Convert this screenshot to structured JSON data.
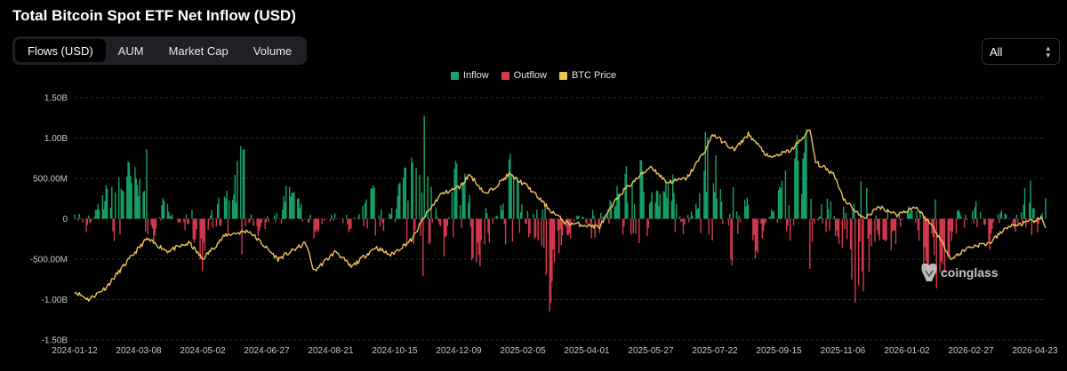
{
  "title": "Total Bitcoin Spot ETF Net Inflow (USD)",
  "tabs": [
    {
      "label": "Flows (USD)",
      "active": true
    },
    {
      "label": "AUM",
      "active": false
    },
    {
      "label": "Market Cap",
      "active": false
    },
    {
      "label": "Volume",
      "active": false
    }
  ],
  "range_select": {
    "value": "All"
  },
  "watermark": {
    "text": "coinglass"
  },
  "colors": {
    "inflow": "#16a36a",
    "outflow": "#d63a4f",
    "price": "#f0c35a",
    "background": "#000000"
  },
  "chart_data": {
    "type": "bar",
    "title": "Total Bitcoin Spot ETF Net Inflow (USD)",
    "legend": [
      "Inflow",
      "Outflow",
      "BTC Price"
    ],
    "legend_position": "top-center",
    "grid": true,
    "ylim": [
      -1500000000,
      1500000000
    ],
    "y_ticks": [
      {
        "value": 1500000000,
        "label": "1.50B"
      },
      {
        "value": 1000000000,
        "label": "1.00B"
      },
      {
        "value": 500000000,
        "label": "500.00M"
      },
      {
        "value": 0,
        "label": "0"
      },
      {
        "value": -500000000,
        "label": "-500.00M"
      },
      {
        "value": -1000000000,
        "label": "-1.00B"
      },
      {
        "value": -1500000000,
        "label": "-1.50B"
      }
    ],
    "x_ticks": [
      "2024-01-12",
      "2024-03-08",
      "2024-05-02",
      "2024-06-27",
      "2024-08-21",
      "2024-10-15",
      "2024-12-09",
      "2025-02-05",
      "2025-04-01",
      "2025-05-27",
      "2025-07-22",
      "2025-09-15",
      "2025-11-06",
      "2026-01-02",
      "2026-02-27",
      "2026-04-23"
    ],
    "x_range": [
      "2024-01-12",
      "2026-04-27"
    ],
    "flow_anchors": [
      [
        "2024-01-12",
        200000000
      ],
      [
        "2024-01-22",
        -150000000
      ],
      [
        "2024-02-01",
        150000000
      ],
      [
        "2024-02-14",
        500000000
      ],
      [
        "2024-02-28",
        600000000
      ],
      [
        "2024-03-08",
        450000000
      ],
      [
        "2024-03-12",
        1050000000
      ],
      [
        "2024-03-19",
        -300000000
      ],
      [
        "2024-03-28",
        250000000
      ],
      [
        "2024-04-12",
        -100000000
      ],
      [
        "2024-04-26",
        -250000000
      ],
      [
        "2024-05-01",
        -550000000
      ],
      [
        "2024-05-10",
        200000000
      ],
      [
        "2024-05-21",
        300000000
      ],
      [
        "2024-06-06",
        850000000
      ],
      [
        "2024-06-14",
        -200000000
      ],
      [
        "2024-06-26",
        -100000000
      ],
      [
        "2024-07-08",
        200000000
      ],
      [
        "2024-07-16",
        450000000
      ],
      [
        "2024-07-25",
        150000000
      ],
      [
        "2024-08-05",
        -200000000
      ],
      [
        "2024-08-21",
        100000000
      ],
      [
        "2024-09-05",
        -150000000
      ],
      [
        "2024-09-18",
        200000000
      ],
      [
        "2024-09-27",
        400000000
      ],
      [
        "2024-10-01",
        -250000000
      ],
      [
        "2024-10-15",
        350000000
      ],
      [
        "2024-10-29",
        850000000
      ],
      [
        "2024-11-07",
        1350000000
      ],
      [
        "2024-11-13",
        500000000
      ],
      [
        "2024-11-25",
        -400000000
      ],
      [
        "2024-12-05",
        650000000
      ],
      [
        "2024-12-17",
        400000000
      ],
      [
        "2024-12-19",
        -650000000
      ],
      [
        "2025-01-02",
        -300000000
      ],
      [
        "2025-01-16",
        400000000
      ],
      [
        "2025-01-17",
        1000000000
      ],
      [
        "2025-01-29",
        300000000
      ],
      [
        "2025-02-05",
        -200000000
      ],
      [
        "2025-02-18",
        -300000000
      ],
      [
        "2025-02-25",
        -1000000000
      ],
      [
        "2025-03-04",
        -400000000
      ],
      [
        "2025-03-13",
        -250000000
      ],
      [
        "2025-03-21",
        150000000
      ],
      [
        "2025-04-01",
        -200000000
      ],
      [
        "2025-04-09",
        -150000000
      ],
      [
        "2025-04-22",
        400000000
      ],
      [
        "2025-05-05",
        550000000
      ],
      [
        "2025-05-20",
        650000000
      ],
      [
        "2025-05-27",
        350000000
      ],
      [
        "2025-06-10",
        450000000
      ],
      [
        "2025-06-20",
        -250000000
      ],
      [
        "2025-07-02",
        400000000
      ],
      [
        "2025-07-10",
        1180000000
      ],
      [
        "2025-07-22",
        300000000
      ],
      [
        "2025-08-01",
        -700000000
      ],
      [
        "2025-08-12",
        400000000
      ],
      [
        "2025-08-19",
        -500000000
      ],
      [
        "2025-09-04",
        200000000
      ],
      [
        "2025-09-15",
        500000000
      ],
      [
        "2025-10-06",
        1200000000
      ],
      [
        "2025-10-10",
        -200000000
      ],
      [
        "2025-10-21",
        450000000
      ],
      [
        "2025-10-31",
        -450000000
      ],
      [
        "2025-11-06",
        -200000000
      ],
      [
        "2025-11-13",
        -850000000
      ],
      [
        "2025-11-20",
        -900000000
      ],
      [
        "2025-12-03",
        -200000000
      ],
      [
        "2025-12-17",
        -350000000
      ],
      [
        "2026-01-02",
        300000000
      ],
      [
        "2026-01-08",
        -400000000
      ],
      [
        "2026-01-20",
        -750000000
      ],
      [
        "2026-02-03",
        -450000000
      ],
      [
        "2026-02-12",
        -250000000
      ],
      [
        "2026-02-27",
        200000000
      ],
      [
        "2026-03-10",
        -300000000
      ],
      [
        "2026-03-20",
        200000000
      ],
      [
        "2026-04-01",
        -200000000
      ],
      [
        "2026-04-13",
        550000000
      ],
      [
        "2026-04-20",
        -150000000
      ],
      [
        "2026-04-27",
        300000000
      ]
    ],
    "btc_price_anchors": [
      [
        "2024-01-12",
        -900000000
      ],
      [
        "2024-01-24",
        -1000000000
      ],
      [
        "2024-02-08",
        -850000000
      ],
      [
        "2024-02-28",
        -500000000
      ],
      [
        "2024-03-14",
        -250000000
      ],
      [
        "2024-04-01",
        -400000000
      ],
      [
        "2024-04-20",
        -300000000
      ],
      [
        "2024-05-01",
        -500000000
      ],
      [
        "2024-05-21",
        -200000000
      ],
      [
        "2024-06-10",
        -150000000
      ],
      [
        "2024-07-05",
        -500000000
      ],
      [
        "2024-07-29",
        -300000000
      ],
      [
        "2024-08-05",
        -650000000
      ],
      [
        "2024-08-24",
        -400000000
      ],
      [
        "2024-09-06",
        -600000000
      ],
      [
        "2024-09-27",
        -350000000
      ],
      [
        "2024-10-10",
        -450000000
      ],
      [
        "2024-10-29",
        -250000000
      ],
      [
        "2024-11-07",
        0
      ],
      [
        "2024-11-22",
        300000000
      ],
      [
        "2024-12-09",
        400000000
      ],
      [
        "2024-12-17",
        550000000
      ],
      [
        "2024-12-31",
        300000000
      ],
      [
        "2025-01-20",
        550000000
      ],
      [
        "2025-02-05",
        400000000
      ],
      [
        "2025-02-25",
        100000000
      ],
      [
        "2025-03-10",
        -50000000
      ],
      [
        "2025-04-08",
        -100000000
      ],
      [
        "2025-04-25",
        300000000
      ],
      [
        "2025-05-22",
        650000000
      ],
      [
        "2025-06-05",
        450000000
      ],
      [
        "2025-06-22",
        500000000
      ],
      [
        "2025-07-10",
        900000000
      ],
      [
        "2025-07-14",
        1050000000
      ],
      [
        "2025-08-02",
        850000000
      ],
      [
        "2025-08-14",
        1050000000
      ],
      [
        "2025-09-01",
        750000000
      ],
      [
        "2025-09-20",
        850000000
      ],
      [
        "2025-10-06",
        1100000000
      ],
      [
        "2025-10-11",
        700000000
      ],
      [
        "2025-10-27",
        550000000
      ],
      [
        "2025-11-04",
        250000000
      ],
      [
        "2025-11-21",
        0
      ],
      [
        "2025-12-05",
        150000000
      ],
      [
        "2025-12-20",
        50000000
      ],
      [
        "2026-01-05",
        150000000
      ],
      [
        "2026-01-20",
        -100000000
      ],
      [
        "2026-02-05",
        -500000000
      ],
      [
        "2026-02-20",
        -350000000
      ],
      [
        "2026-03-10",
        -300000000
      ],
      [
        "2026-03-25",
        -100000000
      ],
      [
        "2026-04-10",
        -50000000
      ],
      [
        "2026-04-23",
        0
      ],
      [
        "2026-04-27",
        -100000000
      ]
    ]
  }
}
